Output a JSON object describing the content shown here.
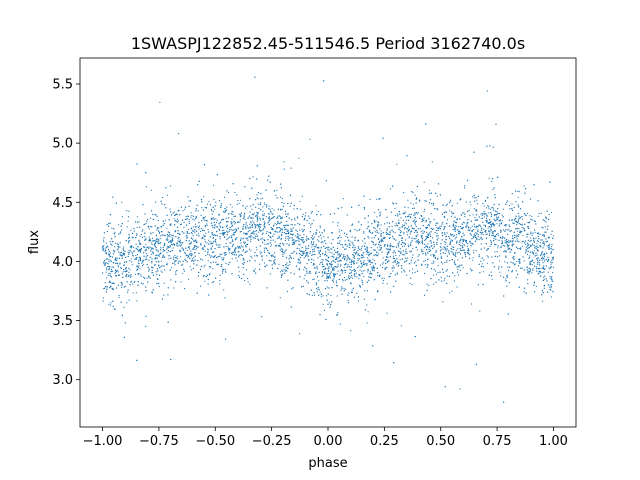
{
  "chart_data": {
    "type": "scatter",
    "title": "1SWASPJ122852.45-511546.5 Period 3162740.0s",
    "xlabel": "phase",
    "ylabel": "flux",
    "xlim": [
      -1.1,
      1.1
    ],
    "ylim": [
      2.6,
      5.72
    ],
    "xticks": [
      -1.0,
      -0.75,
      -0.5,
      -0.25,
      0.0,
      0.25,
      0.5,
      0.75,
      1.0
    ],
    "xtick_labels": [
      "−1.00",
      "−0.75",
      "−0.50",
      "−0.25",
      "0.00",
      "0.25",
      "0.50",
      "0.75",
      "1.00"
    ],
    "yticks": [
      3.0,
      3.5,
      4.0,
      4.5,
      5.0,
      5.5
    ],
    "ytick_labels": [
      "3.0",
      "3.5",
      "4.0",
      "4.5",
      "5.0",
      "5.5"
    ],
    "grid": false,
    "legend": "none",
    "marker_color": "#1f77b4",
    "series": [
      {
        "phase_range": [
          -1.0,
          1.0
        ],
        "mean_curve": {
          "phase": [
            -1.0,
            -0.9,
            -0.8,
            -0.7,
            -0.6,
            -0.5,
            -0.4,
            -0.3,
            -0.2,
            -0.1,
            0.0,
            0.1,
            0.2,
            0.3,
            0.4,
            0.5,
            0.6,
            0.7,
            0.8,
            0.9,
            1.0
          ],
          "flux": [
            4.0,
            3.98,
            4.08,
            4.16,
            4.22,
            4.18,
            4.2,
            4.28,
            4.22,
            4.1,
            3.98,
            3.98,
            4.08,
            4.16,
            4.22,
            4.18,
            4.2,
            4.28,
            4.22,
            4.1,
            4.0
          ]
        }
      }
    ]
  }
}
